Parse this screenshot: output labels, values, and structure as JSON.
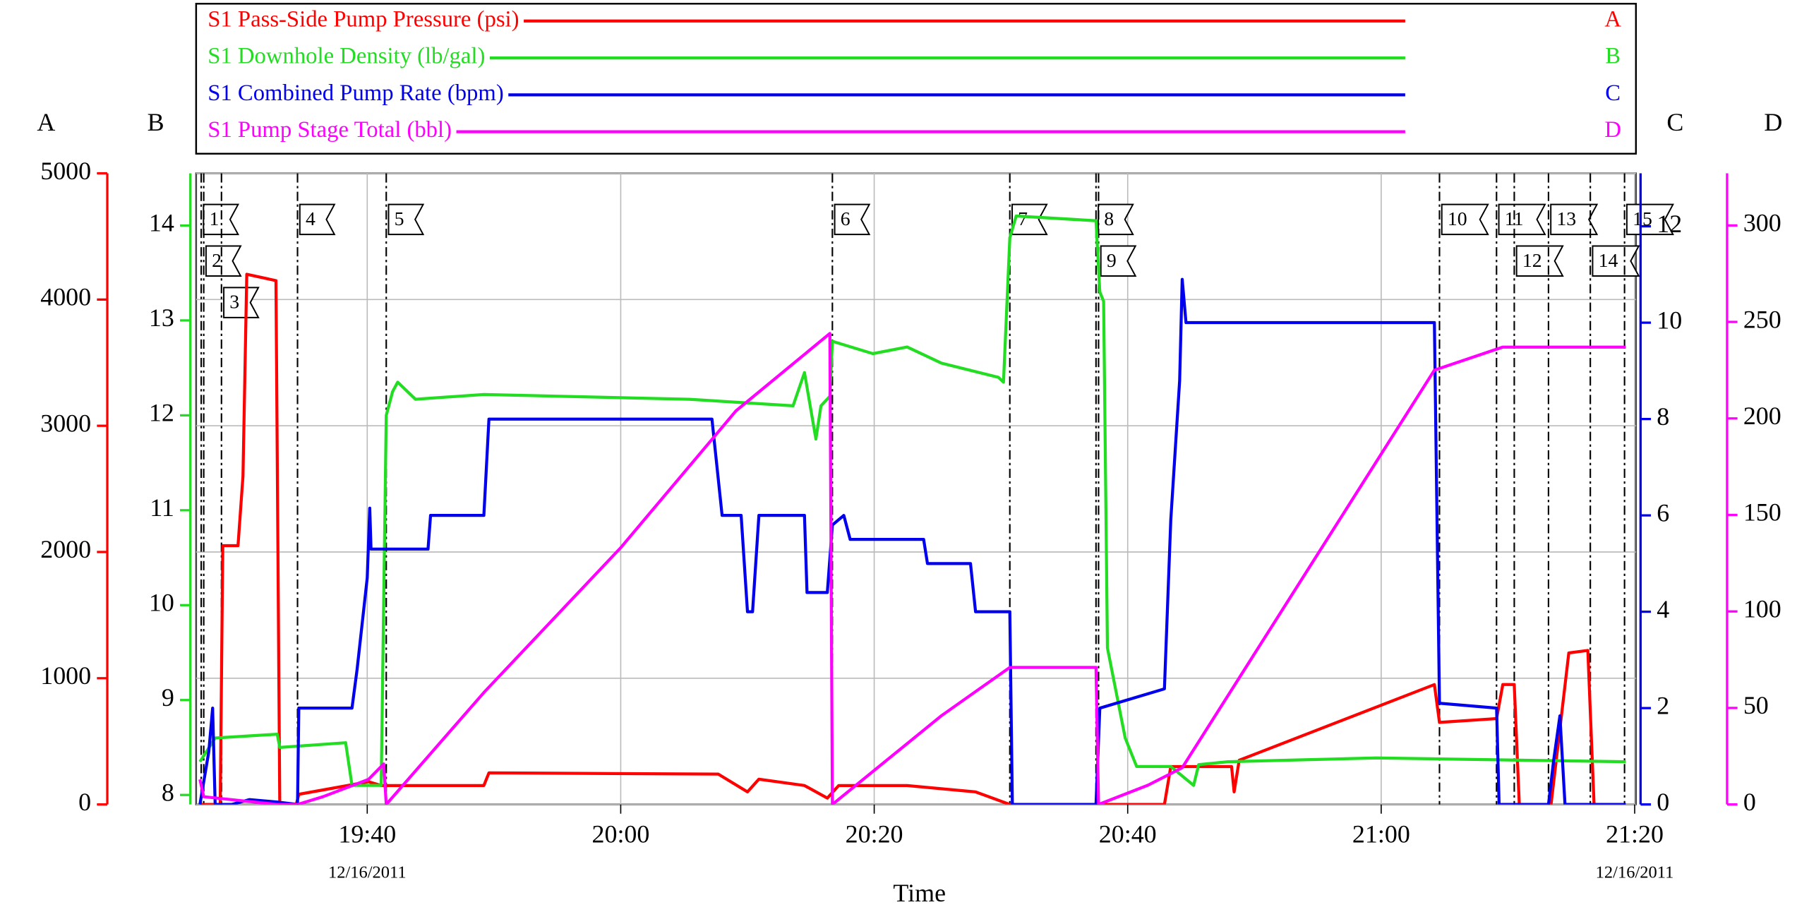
{
  "chart_data": {
    "type": "line",
    "x_label": "Time",
    "xlim": [
      1166.5,
      1280.1
    ],
    "xticks": [
      {
        "value": 1180,
        "label": "19:40"
      },
      {
        "value": 1200,
        "label": "20:00"
      },
      {
        "value": 1220,
        "label": "20:20"
      },
      {
        "value": 1240,
        "label": "20:40"
      },
      {
        "value": 1260,
        "label": "21:00"
      },
      {
        "value": 1280,
        "label": "21:20"
      }
    ],
    "x_date_labels": [
      {
        "value": 1180,
        "label": "12/16/2011"
      },
      {
        "value": 1280,
        "label": "12/16/2011"
      }
    ],
    "grid": true,
    "axes": [
      {
        "label": "A",
        "side": "left",
        "color": "#ff0000",
        "lim": [
          0,
          5000
        ],
        "ticks": [
          0,
          1000,
          2000,
          3000,
          4000,
          5000
        ]
      },
      {
        "label": "B",
        "side": "left",
        "color": "#22dd22",
        "lim": [
          7.9,
          14.55
        ],
        "ticks": [
          8,
          9,
          10,
          11,
          12,
          13,
          14
        ]
      },
      {
        "label": "C",
        "side": "right",
        "color": "#0000ee",
        "lim": [
          0,
          13.1
        ],
        "ticks": [
          0,
          2,
          4,
          6,
          8,
          10,
          12
        ]
      },
      {
        "label": "D",
        "side": "right",
        "color": "#ff00ff",
        "lim": [
          0,
          327
        ],
        "ticks": [
          0,
          50,
          100,
          150,
          200,
          250,
          300
        ]
      }
    ],
    "series": [
      {
        "name": "S1 Pass-Side Pump Pressure (psi)",
        "color": "#ff0000",
        "axis": 0,
        "x": [
          1166.8,
          1168.4,
          1168.6,
          1169.8,
          1170.2,
          1170.5,
          1172.8,
          1173.1,
          1174.4,
          1174.6,
          1180.1,
          1181.1,
          1189.2,
          1189.6,
          1207.7,
          1210,
          1210.9,
          1214.5,
          1216.3,
          1217.2,
          1222.6,
          1228,
          1230.7,
          1242.9,
          1243.4,
          1248.2,
          1248.4,
          1248.8,
          1264.2,
          1264.6,
          1269.1,
          1269.6,
          1270.5,
          1270.9,
          1273.4,
          1274.8,
          1276.3,
          1276.8,
          1279.2
        ],
        "values": [
          0,
          0,
          2050,
          2050,
          2600,
          4200,
          4150,
          0,
          0,
          80,
          180,
          150,
          150,
          250,
          240,
          100,
          200,
          150,
          50,
          150,
          150,
          100,
          0,
          0,
          300,
          300,
          100,
          350,
          950,
          650,
          680,
          950,
          950,
          0,
          0,
          1200,
          1220,
          0,
          0
        ]
      },
      {
        "name": "S1 Downhole Density (lb/gal)",
        "color": "#22dd22",
        "axis": 1,
        "x": [
          1166.8,
          1168,
          1172.9,
          1173.1,
          1178.3,
          1178.8,
          1181.1,
          1181.5,
          1182,
          1182.4,
          1183.8,
          1189.2,
          1205.4,
          1213.6,
          1214.5,
          1215.4,
          1215.8,
          1216.5,
          1216.7,
          1219.9,
          1222.6,
          1225.3,
          1229.8,
          1230.2,
          1230.7,
          1231.2,
          1237.5,
          1237.8,
          1238.1,
          1238.4,
          1239.8,
          1240.7,
          1243.4,
          1245.2,
          1245.6,
          1247.9,
          1259.6,
          1279.3
        ],
        "values": [
          8.35,
          8.6,
          8.64,
          8.5,
          8.55,
          8.1,
          8.1,
          12.0,
          12.25,
          12.35,
          12.17,
          12.22,
          12.17,
          12.1,
          12.45,
          11.75,
          12.1,
          12.2,
          12.78,
          12.65,
          12.72,
          12.55,
          12.4,
          12.35,
          13.87,
          14.1,
          14.05,
          13.3,
          13.2,
          9.55,
          8.6,
          8.3,
          8.3,
          8.1,
          8.32,
          8.35,
          8.39,
          8.35
        ]
      },
      {
        "name": "S1 Combined Pump Rate (bpm)",
        "color": "#0000ee",
        "axis": 2,
        "x": [
          1166.8,
          1167.5,
          1167.8,
          1168,
          1169.3,
          1170.7,
          1172.9,
          1174.5,
          1174.6,
          1178.8,
          1179.2,
          1180,
          1180.2,
          1180.3,
          1184.8,
          1185,
          1189.2,
          1189.6,
          1207.2,
          1208,
          1209.5,
          1210,
          1210.4,
          1210.9,
          1214.5,
          1214.7,
          1216.3,
          1216.7,
          1217.6,
          1218.1,
          1223.9,
          1224.2,
          1227.6,
          1228,
          1230.7,
          1230.9,
          1237.5,
          1237.8,
          1242.9,
          1243.4,
          1244.1,
          1244.3,
          1244.6,
          1264.2,
          1264.6,
          1269.1,
          1269.3,
          1273.2,
          1273.6,
          1274.1,
          1274.5,
          1279.3
        ],
        "values": [
          0,
          1.1,
          2.0,
          0,
          0,
          0.1,
          0.05,
          0,
          2,
          2,
          2.8,
          4.7,
          6.15,
          5.3,
          5.3,
          6,
          6,
          8,
          8,
          6,
          6,
          4,
          4,
          6,
          6,
          4.4,
          4.4,
          5.8,
          6.0,
          5.5,
          5.5,
          5.0,
          5.0,
          4.0,
          4.0,
          0,
          0,
          2.0,
          2.4,
          5.9,
          8.8,
          10.9,
          10,
          10,
          2.1,
          2,
          0,
          0,
          0.9,
          1.84,
          0,
          0
        ]
      },
      {
        "name": "S1 Pump Stage Total (bbl)",
        "color": "#ff00ff",
        "axis": 3,
        "x": [
          1166.8,
          1167.1,
          1172.9,
          1174.5,
          1176.5,
          1180.1,
          1181.3,
          1181.5,
          1189.2,
          1200,
          1209.1,
          1216.5,
          1216.7,
          1225.3,
          1230.7,
          1237.5,
          1237.7,
          1241.6,
          1244.3,
          1264.2,
          1269.6,
          1279.3
        ],
        "values": [
          13,
          4,
          0,
          0,
          4,
          13,
          21,
          0,
          58,
          133,
          204,
          244,
          0,
          46,
          71,
          71,
          0,
          10,
          19,
          225,
          237,
          237
        ]
      }
    ],
    "events": [
      {
        "label": "1",
        "x": 1166.9
      },
      {
        "label": "2",
        "x": 1167.1
      },
      {
        "label": "3",
        "x": 1168.5
      },
      {
        "label": "4",
        "x": 1174.5
      },
      {
        "label": "5",
        "x": 1181.5
      },
      {
        "label": "6",
        "x": 1216.7
      },
      {
        "label": "7",
        "x": 1230.7
      },
      {
        "label": "8",
        "x": 1237.5
      },
      {
        "label": "9",
        "x": 1237.7
      },
      {
        "label": "10",
        "x": 1264.6
      },
      {
        "label": "11",
        "x": 1269.1
      },
      {
        "label": "12",
        "x": 1270.5
      },
      {
        "label": "13",
        "x": 1273.2
      },
      {
        "label": "14",
        "x": 1276.5
      },
      {
        "label": "15",
        "x": 1279.2
      }
    ]
  }
}
